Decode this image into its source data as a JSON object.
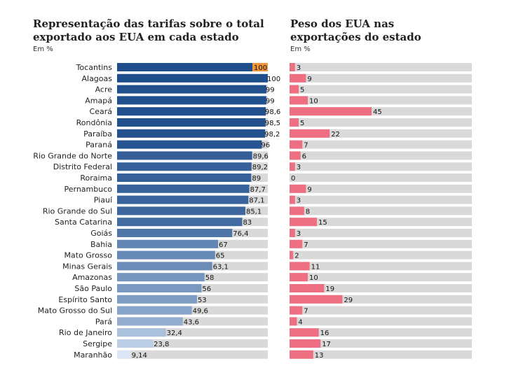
{
  "chart_data": [
    {
      "type": "bar",
      "orientation": "horizontal",
      "title": "Representação das tarifas sobre o total exportado aos EUA em cada estado",
      "unit": "Em %",
      "xlim": [
        0,
        100
      ],
      "categories": [
        "Tocantins",
        "Alagoas",
        "Acre",
        "Amapá",
        "Ceará",
        "Rondônia",
        "Paraíba",
        "Paraná",
        "Rio Grande do Norte",
        "Distrito Federal",
        "Roraima",
        "Pernambuco",
        "Piauí",
        "Rio  Grande do Sul",
        "Santa Catarina",
        "Goiás",
        "Bahia",
        "Mato Grosso",
        "Minas Gerais",
        "Amazonas",
        "São Paulo",
        "Espírito Santo",
        "Mato Grosso do Sul",
        "Pará",
        "Rio de Janeiro",
        "Sergipe",
        "Maranhão"
      ],
      "values": [
        100,
        100,
        99,
        99,
        98.6,
        98.5,
        98.2,
        96,
        89.6,
        89.2,
        89,
        87.7,
        87.1,
        85.1,
        83,
        76.4,
        67,
        65,
        63.1,
        58,
        56,
        53,
        49.6,
        43.6,
        32.4,
        23.8,
        9.14
      ],
      "labels": [
        "100",
        "100",
        "99",
        "99",
        "98,6",
        "98,5",
        "98,2",
        "96",
        "89,6",
        "89,2",
        "89",
        "87,7",
        "87,1",
        "85,1",
        "83",
        "76,4",
        "67",
        "65",
        "63,1",
        "58",
        "56",
        "53",
        "49,6",
        "43,6",
        "32,4",
        "23,8",
        "9,14"
      ],
      "highlight_index": 0,
      "highlight_color": "#f0963a",
      "color_dark": "#1f4e8c",
      "color_light": "#dbe7f7",
      "track_color": "#d9d9d9"
    },
    {
      "type": "bar",
      "orientation": "horizontal",
      "title": "Peso dos EUA nas exportações do estado",
      "unit": "Em %",
      "xlim": [
        0,
        100
      ],
      "categories": [
        "Tocantins",
        "Alagoas",
        "Acre",
        "Amapá",
        "Ceará",
        "Rondônia",
        "Paraíba",
        "Paraná",
        "Rio Grande do Norte",
        "Distrito Federal",
        "Roraima",
        "Pernambuco",
        "Piauí",
        "Rio  Grande do Sul",
        "Santa Catarina",
        "Goiás",
        "Bahia",
        "Mato Grosso",
        "Minas Gerais",
        "Amazonas",
        "São Paulo",
        "Espírito Santo",
        "Mato Grosso do Sul",
        "Pará",
        "Rio de Janeiro",
        "Sergipe",
        "Maranhão"
      ],
      "values": [
        3,
        9,
        5,
        10,
        45,
        5,
        22,
        7,
        6,
        3,
        0,
        9,
        3,
        8,
        15,
        3,
        7,
        2,
        11,
        10,
        19,
        29,
        7,
        4,
        16,
        17,
        13
      ],
      "labels": [
        "3",
        "9",
        "5",
        "10",
        "45",
        "5",
        "22",
        "7",
        "6",
        "3",
        "0",
        "9",
        "3",
        "8",
        "15",
        "3",
        "7",
        "2",
        "11",
        "10",
        "19",
        "29",
        "7",
        "4",
        "16",
        "17",
        "13"
      ],
      "bar_color": "#ef6f82",
      "track_color": "#d9d9d9"
    }
  ]
}
